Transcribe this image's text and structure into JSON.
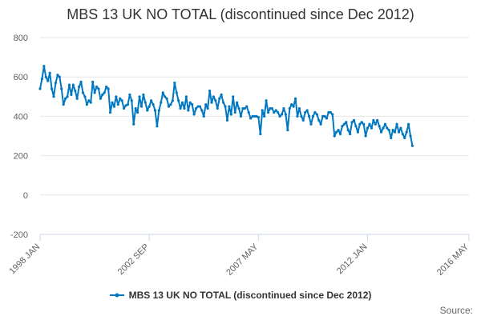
{
  "chart_data": {
    "type": "line",
    "title": "MBS 13 UK NO TOTAL (discontinued since Dec 2012)",
    "xlabel": "",
    "ylabel": "",
    "ylim": [
      -200,
      800
    ],
    "yticks": [
      -200,
      0,
      200,
      400,
      600,
      800
    ],
    "xlim": [
      "1998 JAN",
      "2016 MAY"
    ],
    "xticks": [
      "1998 JAN",
      "2002 SEP",
      "2007 MAY",
      "2012 JAN",
      "2016 MAY"
    ],
    "x_start": "1998 JAN",
    "x_step": "1 month",
    "legend_position": "bottom-center",
    "grid": "horizontal",
    "color": "#0077c0",
    "series": [
      {
        "name": "MBS 13 UK NO TOTAL (discontinued since Dec 2012)",
        "values": [
          540,
          590,
          655,
          600,
          580,
          620,
          540,
          500,
          570,
          610,
          600,
          540,
          460,
          490,
          500,
          560,
          510,
          560,
          530,
          490,
          550,
          575,
          520,
          500,
          460,
          480,
          470,
          575,
          520,
          550,
          540,
          490,
          510,
          520,
          550,
          540,
          420,
          470,
          450,
          500,
          460,
          490,
          480,
          440,
          455,
          460,
          510,
          480,
          360,
          440,
          420,
          500,
          450,
          510,
          470,
          430,
          450,
          480,
          460,
          430,
          350,
          430,
          470,
          520,
          500,
          490,
          450,
          460,
          480,
          570,
          520,
          480,
          440,
          470,
          440,
          500,
          430,
          470,
          460,
          410,
          440,
          450,
          450,
          430,
          400,
          460,
          440,
          530,
          470,
          500,
          480,
          440,
          490,
          510,
          470,
          450,
          380,
          450,
          410,
          500,
          420,
          470,
          440,
          400,
          440,
          440,
          450,
          420,
          390,
          400,
          400,
          400,
          395,
          310,
          430,
          400,
          480,
          420,
          440,
          440,
          420,
          430,
          420,
          400,
          410,
          440,
          410,
          330,
          440,
          460,
          450,
          490,
          400,
          440,
          400,
          380,
          420,
          430,
          400,
          360,
          400,
          420,
          410,
          380,
          360,
          400,
          400,
          390,
          420,
          420,
          410,
          300,
          320,
          330,
          310,
          350,
          360,
          370,
          330,
          310,
          370,
          380,
          350,
          320,
          360,
          370,
          360,
          300,
          340,
          360,
          340,
          380,
          360,
          380,
          350,
          320,
          340,
          360,
          340,
          330,
          290,
          330,
          320,
          360,
          320,
          340,
          310,
          290,
          320,
          360,
          300,
          250
        ]
      }
    ]
  },
  "legend": {
    "label": "MBS 13 UK NO TOTAL (discontinued since Dec 2012)"
  },
  "credits": {
    "label": "Source:"
  }
}
